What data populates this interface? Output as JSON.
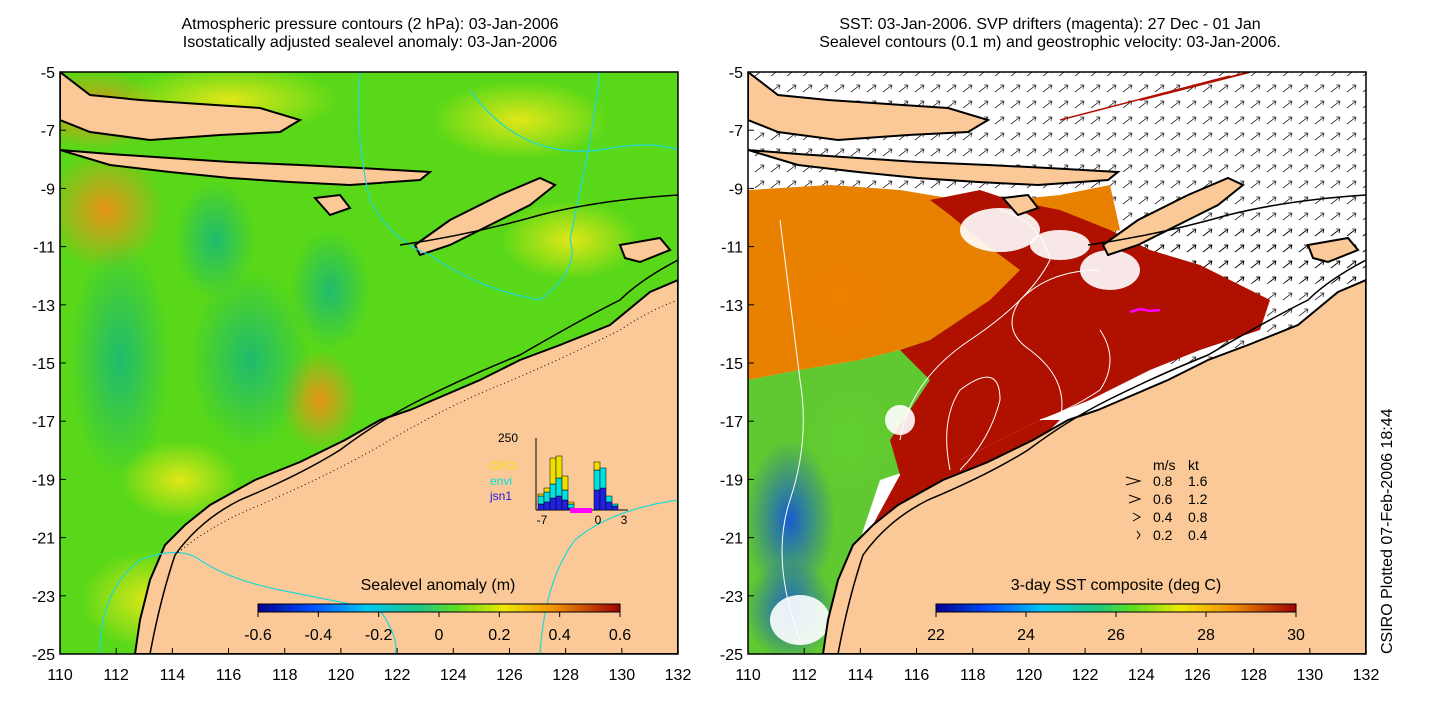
{
  "left_panel": {
    "title_line1": "Atmospheric pressure contours (2 hPa): 03-Jan-2006",
    "title_line2": "Isostatically adjusted sealevel anomaly: 03-Jan-2006",
    "colorbar": {
      "label": "Sealevel anomaly (m)",
      "ticks": [
        "-0.6",
        "-0.4",
        "-0.2",
        "0",
        "0.2",
        "0.4",
        "0.6"
      ]
    },
    "inset": {
      "ymax_label": "250",
      "x_ticks": [
        "-7",
        "0",
        "3"
      ],
      "legend": [
        {
          "name": "GFO",
          "color": "#f0e000"
        },
        {
          "name": "envi",
          "color": "#00e0e0"
        },
        {
          "name": "jsn1",
          "color": "#2020e0"
        }
      ]
    }
  },
  "right_panel": {
    "title_line1": "SST: 03-Jan-2006. SVP drifters (magenta): 27 Dec - 01 Jan",
    "title_line2": "Sealevel contours (0.1 m) and geostrophic velocity: 03-Jan-2006.",
    "colorbar": {
      "label": "3-day SST composite (deg C)",
      "ticks": [
        "22",
        "24",
        "26",
        "28",
        "30"
      ]
    },
    "velocity_legend": {
      "header_ms": "m/s",
      "header_kt": "kt",
      "rows": [
        {
          "ms": "0.8",
          "kt": "1.6"
        },
        {
          "ms": "0.6",
          "kt": "1.2"
        },
        {
          "ms": "0.4",
          "kt": "0.8"
        },
        {
          "ms": "0.2",
          "kt": "0.4"
        }
      ]
    }
  },
  "axes": {
    "x_ticks": [
      "110",
      "112",
      "114",
      "116",
      "118",
      "120",
      "122",
      "124",
      "126",
      "128",
      "130",
      "132"
    ],
    "y_ticks": [
      "-5",
      "-7",
      "-9",
      "-11",
      "-13",
      "-15",
      "-17",
      "-19",
      "-21",
      "-23",
      "-25"
    ]
  },
  "credit": "CSIRO Plotted 07-Feb-2006 18:44",
  "colors": {
    "land": "#fbc997",
    "coast": "#000000",
    "sla_main": "#58d818",
    "sst_warm": "#b01000",
    "contour_cyan": "#20d8d8"
  }
}
